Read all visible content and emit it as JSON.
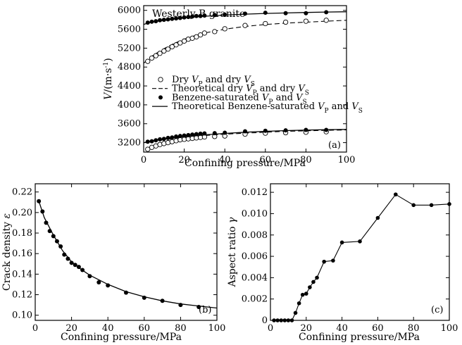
{
  "chart_data": [
    {
      "id": "a",
      "type": "scatter",
      "title": "Westerly B granite",
      "panel_label": "(a)",
      "xlabel": "Confining pressure/MPa",
      "ylabel_main": "V",
      "ylabel_unit": "/(m·s",
      "ylabel_exp": "-1",
      "ylabel_close": ")",
      "xlim": [
        0,
        100
      ],
      "ylim": [
        3000,
        6100
      ],
      "x_ticks": [
        0,
        20,
        40,
        60,
        80,
        100
      ],
      "y_ticks": [
        3200,
        3600,
        4000,
        4400,
        4800,
        5200,
        5600,
        6000
      ],
      "legend_position": "center-left",
      "legend": [
        {
          "parts": [
            "Dry ",
            "V",
            "P",
            " and dry ",
            "V",
            "S"
          ],
          "marker": "open-circle"
        },
        {
          "parts": [
            "Theoretical dry ",
            "V",
            "P",
            " and dry ",
            "V",
            "S"
          ],
          "marker": "dashed-line"
        },
        {
          "parts": [
            "Benzene-saturated ",
            "V",
            "P",
            " and ",
            "V",
            "S"
          ],
          "marker": "filled-circle"
        },
        {
          "parts": [
            "Theoretical Benzene-saturated ",
            "V",
            "P",
            " and ",
            "V",
            "S"
          ],
          "marker": "solid-line"
        }
      ],
      "series": [
        {
          "kind": "open",
          "x": [
            2,
            4,
            6,
            8,
            10,
            12,
            14,
            16,
            18,
            20,
            22,
            24,
            26,
            28,
            30,
            35,
            40,
            50,
            60,
            70,
            80,
            90
          ],
          "y": [
            4920,
            4990,
            5040,
            5090,
            5140,
            5180,
            5230,
            5270,
            5310,
            5350,
            5390,
            5410,
            5440,
            5480,
            5520,
            5550,
            5610,
            5680,
            5720,
            5750,
            5770,
            5790
          ]
        },
        {
          "kind": "filled",
          "x": [
            2,
            4,
            6,
            8,
            10,
            12,
            14,
            16,
            18,
            20,
            22,
            24,
            26,
            28,
            30,
            35,
            40,
            50,
            60,
            70,
            80,
            90
          ],
          "y": [
            5740,
            5760,
            5770,
            5790,
            5800,
            5810,
            5820,
            5830,
            5840,
            5850,
            5860,
            5870,
            5880,
            5880,
            5890,
            5900,
            5910,
            5930,
            5950,
            5940,
            5940,
            5960
          ]
        },
        {
          "kind": "open",
          "x": [
            2,
            4,
            6,
            8,
            10,
            12,
            14,
            16,
            18,
            20,
            22,
            24,
            26,
            28,
            30,
            35,
            40,
            50,
            60,
            70,
            80,
            90
          ],
          "y": [
            3060,
            3100,
            3130,
            3160,
            3180,
            3200,
            3220,
            3240,
            3260,
            3270,
            3280,
            3290,
            3300,
            3310,
            3320,
            3330,
            3340,
            3380,
            3400,
            3410,
            3420,
            3430
          ]
        },
        {
          "kind": "filled",
          "x": [
            2,
            4,
            6,
            8,
            10,
            12,
            14,
            16,
            18,
            20,
            22,
            24,
            26,
            28,
            30,
            35,
            40,
            50,
            60,
            70,
            80,
            90
          ],
          "y": [
            3220,
            3230,
            3250,
            3270,
            3280,
            3300,
            3310,
            3330,
            3340,
            3350,
            3360,
            3370,
            3380,
            3390,
            3395,
            3400,
            3410,
            3440,
            3450,
            3460,
            3470,
            3470
          ]
        },
        {
          "kind": "dashed",
          "x": [
            0,
            2,
            5,
            10,
            15,
            20,
            25,
            30,
            40,
            50,
            60,
            70,
            80,
            90,
            100
          ],
          "y": [
            4880,
            4960,
            5060,
            5190,
            5300,
            5390,
            5460,
            5520,
            5600,
            5660,
            5700,
            5730,
            5750,
            5770,
            5790
          ]
        },
        {
          "kind": "solid",
          "x": [
            0,
            2,
            5,
            10,
            15,
            20,
            25,
            30,
            40,
            50,
            60,
            70,
            80,
            90,
            100
          ],
          "y": [
            5700,
            5730,
            5760,
            5790,
            5815,
            5840,
            5860,
            5875,
            5900,
            5920,
            5935,
            5945,
            5955,
            5965,
            5970
          ]
        },
        {
          "kind": "dashed",
          "x": [
            0,
            2,
            5,
            10,
            15,
            20,
            25,
            30,
            40,
            50,
            60,
            70,
            80,
            90,
            100
          ],
          "y": [
            3200,
            3210,
            3230,
            3260,
            3290,
            3310,
            3330,
            3350,
            3380,
            3400,
            3420,
            3440,
            3450,
            3460,
            3470
          ]
        },
        {
          "kind": "solid",
          "x": [
            0,
            2,
            5,
            10,
            15,
            20,
            25,
            30,
            40,
            50,
            60,
            70,
            80,
            90,
            100
          ],
          "y": [
            3200,
            3215,
            3240,
            3275,
            3305,
            3330,
            3350,
            3365,
            3395,
            3420,
            3440,
            3455,
            3465,
            3475,
            3480
          ]
        }
      ]
    },
    {
      "id": "b",
      "type": "line",
      "panel_label": "(b)",
      "xlabel": "Confining pressure/MPa",
      "ylabel": "Crack density",
      "ylabel_symbol": "ε",
      "xlim": [
        0,
        100
      ],
      "ylim": [
        0.095,
        0.228
      ],
      "x_ticks": [
        0,
        20,
        40,
        60,
        80,
        100
      ],
      "y_ticks": [
        "0.10",
        "0.12",
        "0.14",
        "0.16",
        "0.18",
        "0.20",
        "0.22"
      ],
      "series": [
        {
          "kind": "filled-points",
          "x": [
            2,
            4,
            6,
            8,
            10,
            12,
            14,
            16,
            18,
            20,
            22,
            24,
            26,
            30,
            35,
            40,
            50,
            60,
            70,
            80,
            90
          ],
          "y": [
            0.211,
            0.201,
            0.19,
            0.182,
            0.177,
            0.172,
            0.167,
            0.159,
            0.155,
            0.151,
            0.149,
            0.147,
            0.144,
            0.138,
            0.132,
            0.129,
            0.122,
            0.117,
            0.114,
            0.11,
            0.108
          ]
        },
        {
          "kind": "fit-line",
          "x": [
            2,
            5,
            10,
            15,
            20,
            25,
            30,
            40,
            50,
            60,
            70,
            80,
            90,
            100
          ],
          "y": [
            0.211,
            0.195,
            0.178,
            0.163,
            0.152,
            0.145,
            0.139,
            0.13,
            0.123,
            0.118,
            0.114,
            0.111,
            0.109,
            0.107
          ]
        }
      ]
    },
    {
      "id": "c",
      "type": "line",
      "panel_label": "(c)",
      "xlabel": "Confining pressure/MPa",
      "ylabel": "Aspect ratio",
      "ylabel_symbol": "γ",
      "xlim": [
        0,
        100
      ],
      "ylim": [
        0,
        0.0128
      ],
      "x_ticks": [
        0,
        20,
        40,
        60,
        80,
        100
      ],
      "y_ticks": [
        "0",
        "0.002",
        "0.004",
        "0.006",
        "0.008",
        "0.010",
        "0.012"
      ],
      "series": [
        {
          "kind": "filled-points-line",
          "x": [
            2,
            4,
            6,
            8,
            10,
            12,
            14,
            16,
            18,
            20,
            22,
            24,
            26,
            30,
            35,
            40,
            50,
            60,
            70,
            80,
            90,
            100
          ],
          "y": [
            0,
            0,
            0,
            0,
            0,
            0,
            0.0007,
            0.0016,
            0.0024,
            0.0025,
            0.0031,
            0.0036,
            0.004,
            0.0055,
            0.0056,
            0.0073,
            0.0074,
            0.0096,
            0.0118,
            0.0108,
            0.0108,
            0.0109
          ]
        }
      ]
    }
  ]
}
